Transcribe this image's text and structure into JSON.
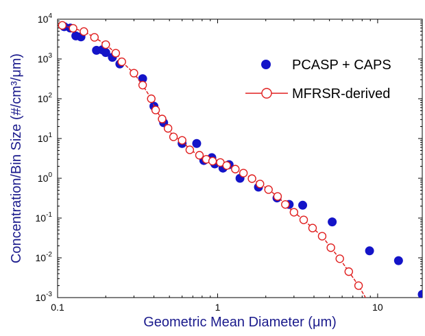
{
  "chart_data": {
    "type": "scatter",
    "xlabel": "Geometric Mean Diameter (μm)",
    "ylabel": "Concentration/Bin Size (#/cm³/μm)",
    "x_scale": "log",
    "y_scale": "log",
    "xlim": [
      0.1,
      19
    ],
    "ylim": [
      0.001,
      10000
    ],
    "x_ticks": [
      {
        "value": 0.1,
        "label": "0.1"
      },
      {
        "value": 1,
        "label": "1"
      },
      {
        "value": 10,
        "label": "10"
      }
    ],
    "y_ticks": [
      {
        "value": 0.001,
        "base": "10",
        "exp": "-3"
      },
      {
        "value": 0.01,
        "base": "10",
        "exp": "-2"
      },
      {
        "value": 0.1,
        "base": "10",
        "exp": "-1"
      },
      {
        "value": 1,
        "base": "10",
        "exp": "0"
      },
      {
        "value": 10,
        "base": "10",
        "exp": "1"
      },
      {
        "value": 100,
        "base": "10",
        "exp": "2"
      },
      {
        "value": 1000,
        "base": "10",
        "exp": "3"
      },
      {
        "value": 10000,
        "base": "10",
        "exp": "4"
      }
    ],
    "grid": false,
    "legend_position": "top-right",
    "series": [
      {
        "name": "PCASP + CAPS",
        "style": "filled-circle",
        "color": "#1414c8",
        "points": [
          [
            0.11,
            6500
          ],
          [
            0.12,
            6000
          ],
          [
            0.13,
            3800
          ],
          [
            0.14,
            3600
          ],
          [
            0.175,
            1650
          ],
          [
            0.19,
            1700
          ],
          [
            0.2,
            1450
          ],
          [
            0.22,
            1100
          ],
          [
            0.245,
            750
          ],
          [
            0.34,
            320
          ],
          [
            0.4,
            65
          ],
          [
            0.46,
            25
          ],
          [
            0.6,
            7.5
          ],
          [
            0.74,
            7.5
          ],
          [
            0.82,
            2.8
          ],
          [
            0.92,
            3.3
          ],
          [
            0.96,
            2.3
          ],
          [
            1.08,
            1.8
          ],
          [
            1.18,
            2.2
          ],
          [
            1.38,
            1.0
          ],
          [
            1.8,
            0.6
          ],
          [
            2.35,
            0.32
          ],
          [
            2.8,
            0.22
          ],
          [
            3.4,
            0.21
          ],
          [
            5.2,
            0.08
          ],
          [
            8.9,
            0.015
          ],
          [
            13.5,
            0.0085
          ],
          [
            19,
            0.0012
          ]
        ]
      },
      {
        "name": "MFRSR-derived",
        "style": "open-circle-line",
        "color": "#e01e1e",
        "points": [
          [
            0.107,
            7000
          ],
          [
            0.125,
            5900
          ],
          [
            0.146,
            4900
          ],
          [
            0.17,
            3500
          ],
          [
            0.2,
            2300
          ],
          [
            0.231,
            1400
          ],
          [
            0.252,
            850
          ],
          [
            0.3,
            440
          ],
          [
            0.34,
            220
          ],
          [
            0.385,
            100
          ],
          [
            0.41,
            52
          ],
          [
            0.45,
            31
          ],
          [
            0.49,
            18
          ],
          [
            0.53,
            11
          ],
          [
            0.6,
            9
          ],
          [
            0.67,
            5.2
          ],
          [
            0.77,
            3.8
          ],
          [
            0.85,
            3.0
          ],
          [
            0.93,
            2.7
          ],
          [
            1.04,
            2.5
          ],
          [
            1.14,
            2.1
          ],
          [
            1.29,
            1.7
          ],
          [
            1.45,
            1.35
          ],
          [
            1.64,
            0.98
          ],
          [
            1.84,
            0.72
          ],
          [
            2.08,
            0.52
          ],
          [
            2.37,
            0.35
          ],
          [
            2.65,
            0.22
          ],
          [
            3.0,
            0.14
          ],
          [
            3.45,
            0.09
          ],
          [
            3.92,
            0.056
          ],
          [
            4.5,
            0.035
          ],
          [
            5.1,
            0.018
          ],
          [
            5.8,
            0.0095
          ],
          [
            6.6,
            0.0045
          ],
          [
            7.6,
            0.002
          ]
        ]
      }
    ]
  }
}
